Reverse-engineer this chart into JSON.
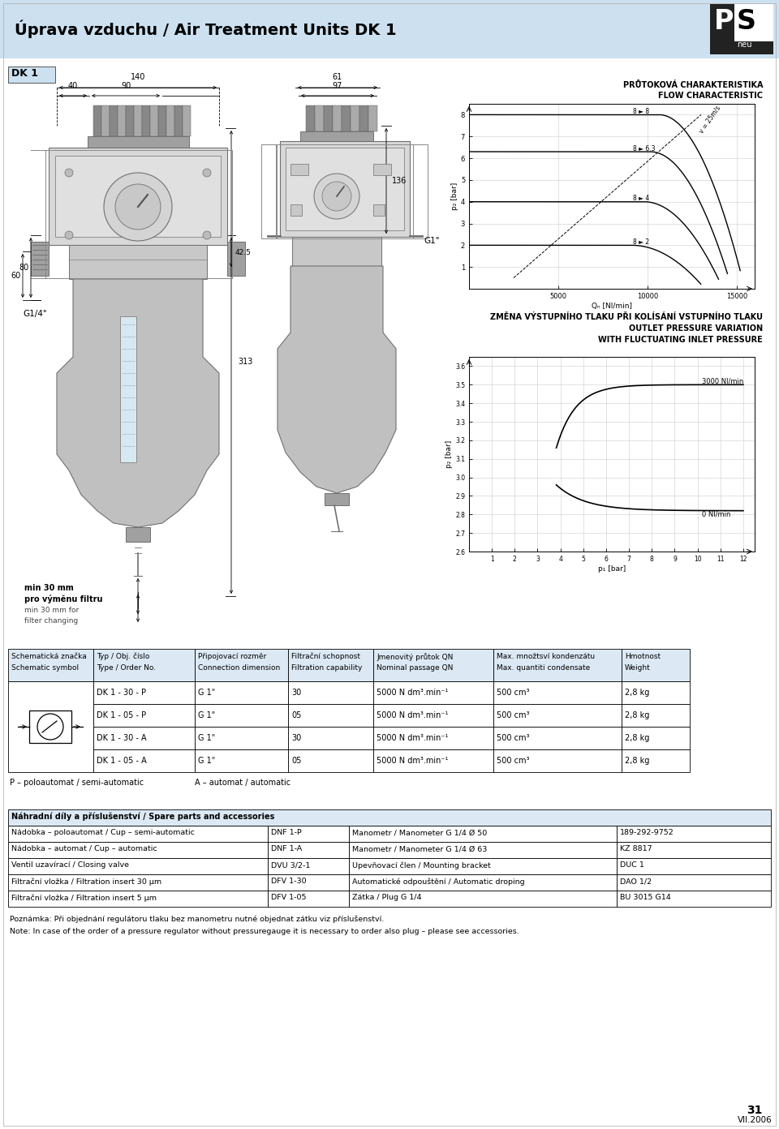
{
  "title": "Úprava vzduchu / Air Treatment Units DK 1",
  "header_bg": "#cce0f0",
  "white": "#ffffff",
  "black": "#000000",
  "light_blue": "#dce9f5",
  "page_number": "31",
  "page_date": "VII.2006",
  "section_label": "DK 1",
  "flow_chart_title1": "PRŮTOKOVÁ CHARAKTERISTIKA",
  "flow_chart_title2": "FLOW CHARACTERISTIC",
  "pressure_chart_title1": "ZMĚNA VÝSTUPNÍHO TLAKU PŘI KOLÍSÁNÍ VSTUPNÍHO TLAKU",
  "pressure_chart_title2": "OUTLET PRESSURE VARIATION",
  "pressure_chart_title3": "WITH FLUCTUATING INLET PRESSURE",
  "flow_ylabel": "p₂ [bar]",
  "flow_xlabel": "Qₙ [Nl/min]",
  "pressure_ylabel": "p₂ [bar]",
  "pressure_xlabel": "p₁ [bar]",
  "flow_curves": [
    {
      "p_in": 8,
      "p_out": 8,
      "label": "8 ► 8"
    },
    {
      "p_in": 8,
      "p_out": 6.3,
      "label": "8 ► 6.3"
    },
    {
      "p_in": 8,
      "p_out": 4,
      "label": "8 ► 4"
    },
    {
      "p_in": 8,
      "p_out": 2,
      "label": "8 ► 2"
    }
  ],
  "main_table_headers": [
    [
      "Schematická značka",
      "Schematic symbol"
    ],
    [
      "Typ / Obj. číslo",
      "Type / Order No."
    ],
    [
      "Připojovací rozměr",
      "Connection dimension"
    ],
    [
      "Filtrační schopnost",
      "Filtration capability"
    ],
    [
      "Jmenovitý průtok QN",
      "Nominal passage QN"
    ],
    [
      "Max. množtsví kondenzátu",
      "Max. quantiti condensate"
    ],
    [
      "Hmotnost",
      "Weight"
    ]
  ],
  "main_table_rows": [
    [
      "DK 1 - 30 - P",
      "G 1\"",
      "30",
      "5000 N dm³.min⁻¹",
      "500 cm³",
      "2,8 kg"
    ],
    [
      "DK 1 - 05 - P",
      "G 1\"",
      "05",
      "5000 N dm³.min⁻¹",
      "500 cm³",
      "2,8 kg"
    ],
    [
      "DK 1 - 30 - A",
      "G 1\"",
      "30",
      "5000 N dm³.min⁻¹",
      "500 cm³",
      "2,8 kg"
    ],
    [
      "DK 1 - 05 - A",
      "G 1\"",
      "05",
      "5000 N dm³.min⁻¹",
      "500 cm³",
      "2,8 kg"
    ]
  ],
  "footer_note1": "P – poloautomat / semi-automatic",
  "footer_note2": "A – automat / automatic",
  "spare_parts_header": "Náhradní díly a příslušenství / Spare parts and accessories",
  "spare_parts_rows": [
    [
      "Nádobka – poloautomat / Cup – semi-automatic",
      "DNF 1-P",
      "Manometr / Manometer G 1/4 Ø 50",
      "189-292-9752"
    ],
    [
      "Nádobka – automat / Cup – automatic",
      "DNF 1-A",
      "Manometr / Manometer G 1/4 Ø 63",
      "KZ 8817"
    ],
    [
      "Ventil uzavírací / Closing valve",
      "DVU 3/2-1",
      "Upevňovací člen / Mounting bracket",
      "DUC 1"
    ],
    [
      "Filtrační vložka / Filtration insert 30 μm",
      "DFV 1-30",
      "Automatické odpouštění / Automatic droping",
      "DAO 1/2"
    ],
    [
      "Filtrační vložka / Filtration insert 5 μm",
      "DFV 1-05",
      "Zátka / Plug G 1/4",
      "BU 3015 G14"
    ]
  ],
  "note_cz": "Poznámka: Při objednání regulátoru tlaku bez manometru nutné objednat zátku viz příslušenství.",
  "note_en": "Note: In case of the order of a pressure regulator without pressuregauge it is necessary to order also plug – please see accessories."
}
